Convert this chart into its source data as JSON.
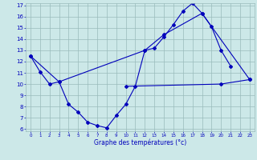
{
  "xlabel": "Graphe des températures (°c)",
  "line_color": "#0000bb",
  "bg_color": "#cce8e8",
  "grid_color": "#99bbbb",
  "ylim": [
    6,
    17
  ],
  "xlim": [
    -0.5,
    23.5
  ],
  "yticks": [
    6,
    7,
    8,
    9,
    10,
    11,
    12,
    13,
    14,
    15,
    16,
    17
  ],
  "xticks": [
    0,
    1,
    2,
    3,
    4,
    5,
    6,
    7,
    8,
    9,
    10,
    11,
    12,
    13,
    14,
    15,
    16,
    17,
    18,
    19,
    20,
    21,
    22,
    23
  ],
  "series1_x": [
    0,
    1,
    2,
    3,
    4,
    5,
    6,
    7,
    8,
    9,
    10,
    11,
    12,
    13,
    14,
    15,
    16,
    17,
    18,
    19,
    20,
    21
  ],
  "series1_y": [
    12.5,
    11.1,
    10.0,
    10.2,
    8.2,
    7.5,
    6.6,
    6.3,
    6.1,
    7.2,
    8.2,
    9.8,
    13.0,
    13.2,
    14.2,
    15.3,
    16.5,
    17.2,
    16.3,
    15.1,
    13.0,
    11.6
  ],
  "series2_x": [
    0,
    3,
    12,
    14,
    18,
    23
  ],
  "series2_y": [
    12.5,
    10.2,
    13.0,
    14.4,
    16.3,
    10.4
  ],
  "series3_x": [
    10,
    20,
    23
  ],
  "series3_y": [
    9.8,
    10.0,
    10.4
  ]
}
